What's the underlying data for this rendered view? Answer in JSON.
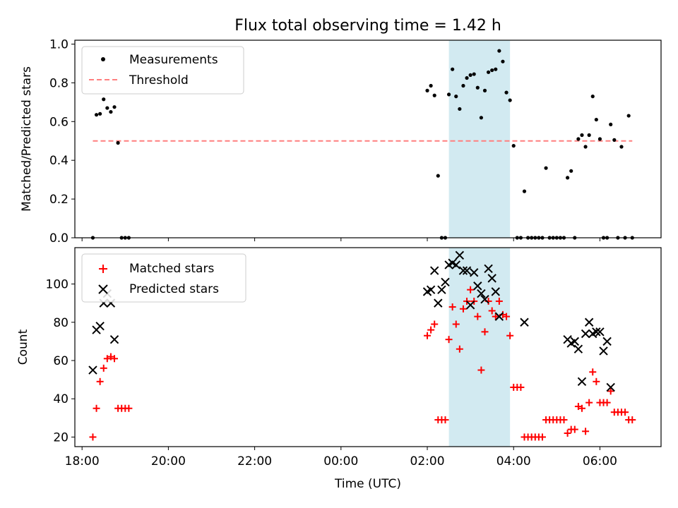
{
  "colors": {
    "measurement": "#000000",
    "threshold": "#ff7f7f",
    "matched": "#ff0000",
    "predicted": "#000000",
    "span": "#add8e6"
  },
  "chart_data": [
    {
      "type": "scatter",
      "title": "Flux total observing time = 1.42 h",
      "xlabel": "",
      "ylabel": "Matched/Predicted stars",
      "xlim": [
        "17:50",
        "07:25"
      ],
      "ylim": [
        0,
        1.02
      ],
      "yticks": [
        "0.0",
        "0.2",
        "0.4",
        "0.6",
        "0.8",
        "1.0"
      ],
      "highlight_span": [
        "02:30",
        "03:55"
      ],
      "legend": {
        "position": "upper-left",
        "entries": [
          "Measurements",
          "Threshold"
        ]
      },
      "series": [
        {
          "name": "Measurements",
          "marker": "dot",
          "points": [
            [
              "18:15",
              0.0
            ],
            [
              "18:20",
              0.635
            ],
            [
              "18:25",
              0.64
            ],
            [
              "18:30",
              0.715
            ],
            [
              "18:35",
              0.67
            ],
            [
              "18:40",
              0.65
            ],
            [
              "18:45",
              0.675
            ],
            [
              "18:50",
              0.49
            ],
            [
              "18:55",
              0.0
            ],
            [
              "19:00",
              0.0
            ],
            [
              "19:05",
              0.0
            ],
            [
              "02:00",
              0.76
            ],
            [
              "02:05",
              0.785
            ],
            [
              "02:10",
              0.735
            ],
            [
              "02:15",
              0.32
            ],
            [
              "02:20",
              0.0
            ],
            [
              "02:25",
              0.0
            ],
            [
              "02:30",
              0.74
            ],
            [
              "02:35",
              0.87
            ],
            [
              "02:40",
              0.73
            ],
            [
              "02:45",
              0.665
            ],
            [
              "02:50",
              0.785
            ],
            [
              "02:55",
              0.825
            ],
            [
              "03:00",
              0.84
            ],
            [
              "03:05",
              0.845
            ],
            [
              "03:10",
              0.775
            ],
            [
              "03:15",
              0.62
            ],
            [
              "03:20",
              0.76
            ],
            [
              "03:25",
              0.855
            ],
            [
              "03:30",
              0.865
            ],
            [
              "03:35",
              0.87
            ],
            [
              "03:40",
              0.965
            ],
            [
              "03:45",
              0.91
            ],
            [
              "03:50",
              0.75
            ],
            [
              "03:55",
              0.71
            ],
            [
              "04:00",
              0.475
            ],
            [
              "04:05",
              0.0
            ],
            [
              "04:10",
              0.0
            ],
            [
              "04:15",
              0.24
            ],
            [
              "04:20",
              0.0
            ],
            [
              "04:25",
              0.0
            ],
            [
              "04:30",
              0.0
            ],
            [
              "04:35",
              0.0
            ],
            [
              "04:40",
              0.0
            ],
            [
              "04:45",
              0.36
            ],
            [
              "04:50",
              0.0
            ],
            [
              "04:55",
              0.0
            ],
            [
              "05:00",
              0.0
            ],
            [
              "05:05",
              0.0
            ],
            [
              "05:10",
              0.0
            ],
            [
              "05:15",
              0.31
            ],
            [
              "05:20",
              0.345
            ],
            [
              "05:25",
              0.0
            ],
            [
              "05:30",
              0.51
            ],
            [
              "05:35",
              0.53
            ],
            [
              "05:40",
              0.47
            ],
            [
              "05:45",
              0.53
            ],
            [
              "05:50",
              0.73
            ],
            [
              "05:55",
              0.61
            ],
            [
              "06:00",
              0.51
            ],
            [
              "06:05",
              0.0
            ],
            [
              "06:10",
              0.0
            ],
            [
              "06:15",
              0.585
            ],
            [
              "06:20",
              0.505
            ],
            [
              "06:25",
              0.0
            ],
            [
              "06:30",
              0.47
            ],
            [
              "06:35",
              0.0
            ],
            [
              "06:40",
              0.63
            ],
            [
              "06:45",
              0.0
            ]
          ]
        },
        {
          "name": "Threshold",
          "style": "dashed",
          "points": [
            [
              "18:15",
              0.5
            ],
            [
              "06:45",
              0.5
            ]
          ]
        }
      ]
    },
    {
      "type": "scatter",
      "title": "",
      "xlabel": "Time (UTC)",
      "ylabel": "Count",
      "xlim": [
        "17:50",
        "07:25"
      ],
      "ylim": [
        15,
        119
      ],
      "yticks": [
        "20",
        "40",
        "60",
        "80",
        "100"
      ],
      "xticks": [
        "18:00",
        "20:00",
        "22:00",
        "00:00",
        "02:00",
        "04:00",
        "06:00"
      ],
      "highlight_span": [
        "02:30",
        "03:55"
      ],
      "legend": {
        "position": "upper-left",
        "entries": [
          "Matched stars",
          "Predicted stars"
        ]
      },
      "series": [
        {
          "name": "Matched stars",
          "marker": "plus",
          "points": [
            [
              "18:15",
              20
            ],
            [
              "18:20",
              35
            ],
            [
              "18:25",
              49
            ],
            [
              "18:30",
              56
            ],
            [
              "18:35",
              61
            ],
            [
              "18:40",
              62
            ],
            [
              "18:45",
              61
            ],
            [
              "18:50",
              35
            ],
            [
              "18:55",
              35
            ],
            [
              "19:00",
              35
            ],
            [
              "19:05",
              35
            ],
            [
              "02:00",
              73
            ],
            [
              "02:05",
              76
            ],
            [
              "02:10",
              79
            ],
            [
              "02:15",
              29
            ],
            [
              "02:20",
              29
            ],
            [
              "02:25",
              29
            ],
            [
              "02:30",
              71
            ],
            [
              "02:35",
              88
            ],
            [
              "02:40",
              79
            ],
            [
              "02:45",
              66
            ],
            [
              "02:50",
              87
            ],
            [
              "02:55",
              91
            ],
            [
              "03:00",
              97
            ],
            [
              "03:05",
              91
            ],
            [
              "03:10",
              83
            ],
            [
              "03:15",
              55
            ],
            [
              "03:20",
              75
            ],
            [
              "03:25",
              91
            ],
            [
              "03:30",
              86
            ],
            [
              "03:35",
              83
            ],
            [
              "03:40",
              91
            ],
            [
              "03:45",
              84
            ],
            [
              "03:50",
              83
            ],
            [
              "03:55",
              73
            ],
            [
              "04:00",
              46
            ],
            [
              "04:05",
              46
            ],
            [
              "04:10",
              46
            ],
            [
              "04:15",
              20
            ],
            [
              "04:20",
              20
            ],
            [
              "04:25",
              20
            ],
            [
              "04:30",
              20
            ],
            [
              "04:35",
              20
            ],
            [
              "04:40",
              20
            ],
            [
              "04:45",
              29
            ],
            [
              "04:50",
              29
            ],
            [
              "04:55",
              29
            ],
            [
              "05:00",
              29
            ],
            [
              "05:05",
              29
            ],
            [
              "05:10",
              29
            ],
            [
              "05:15",
              22
            ],
            [
              "05:20",
              24
            ],
            [
              "05:25",
              24
            ],
            [
              "05:30",
              36
            ],
            [
              "05:35",
              35
            ],
            [
              "05:40",
              23
            ],
            [
              "05:45",
              38
            ],
            [
              "05:50",
              54
            ],
            [
              "05:55",
              49
            ],
            [
              "06:00",
              38
            ],
            [
              "06:05",
              38
            ],
            [
              "06:10",
              38
            ],
            [
              "06:15",
              44
            ],
            [
              "06:20",
              33
            ],
            [
              "06:25",
              33
            ],
            [
              "06:30",
              33
            ],
            [
              "06:35",
              33
            ],
            [
              "06:40",
              29
            ],
            [
              "06:45",
              29
            ]
          ]
        },
        {
          "name": "Predicted stars",
          "marker": "x",
          "points": [
            [
              "18:15",
              55
            ],
            [
              "18:20",
              76
            ],
            [
              "18:25",
              78
            ],
            [
              "18:30",
              90
            ],
            [
              "18:35",
              95
            ],
            [
              "18:40",
              90
            ],
            [
              "18:45",
              71
            ],
            [
              "02:00",
              96
            ],
            [
              "02:05",
              97
            ],
            [
              "02:10",
              107
            ],
            [
              "02:15",
              90
            ],
            [
              "02:20",
              97
            ],
            [
              "02:25",
              101
            ],
            [
              "02:30",
              110
            ],
            [
              "02:35",
              111
            ],
            [
              "02:40",
              110
            ],
            [
              "02:45",
              115
            ],
            [
              "02:50",
              107
            ],
            [
              "02:55",
              107
            ],
            [
              "03:00",
              89
            ],
            [
              "03:05",
              106
            ],
            [
              "03:10",
              99
            ],
            [
              "03:15",
              95
            ],
            [
              "03:20",
              92
            ],
            [
              "03:25",
              108
            ],
            [
              "03:30",
              103
            ],
            [
              "03:35",
              96
            ],
            [
              "03:40",
              83
            ],
            [
              "04:15",
              80
            ],
            [
              "05:15",
              71
            ],
            [
              "05:20",
              69
            ],
            [
              "05:25",
              70
            ],
            [
              "05:30",
              66
            ],
            [
              "05:35",
              49
            ],
            [
              "05:40",
              74
            ],
            [
              "05:45",
              80
            ],
            [
              "05:50",
              74
            ],
            [
              "05:55",
              75
            ],
            [
              "06:00",
              75
            ],
            [
              "06:05",
              65
            ],
            [
              "06:10",
              70
            ],
            [
              "06:15",
              46
            ]
          ]
        }
      ]
    }
  ]
}
